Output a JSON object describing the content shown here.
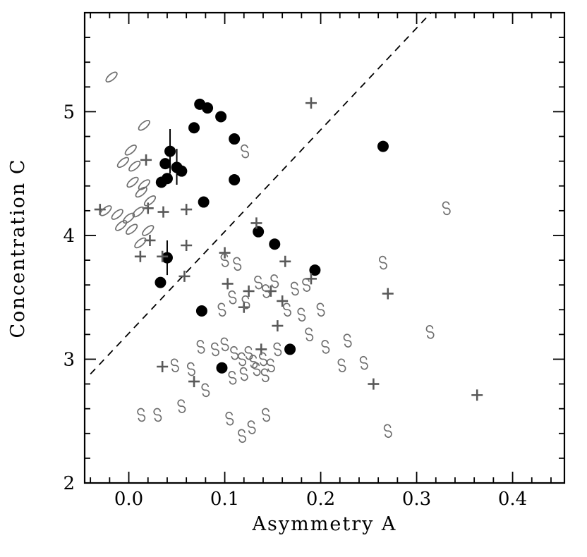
{
  "page": {
    "background": "#ffffff"
  },
  "chart_data": {
    "type": "scatter",
    "title": "",
    "xlabel": "Asymmetry A",
    "ylabel": "Concentration C",
    "xlim": [
      -0.046,
      0.454
    ],
    "ylim": [
      2.0,
      5.8
    ],
    "grid": false,
    "legend": null,
    "frame_color": "#000000",
    "xticks": {
      "values": [
        0.0,
        0.1,
        0.2,
        0.3,
        0.4
      ],
      "labels": [
        "0.0",
        "0.1",
        "0.2",
        "0.3",
        "0.4"
      ],
      "minor_step": 0.02
    },
    "yticks": {
      "values": [
        2,
        3,
        4,
        5
      ],
      "labels": [
        "2",
        "3",
        "4",
        "5"
      ],
      "minor_step": 0.2
    },
    "divider_line": {
      "style": "dashed",
      "color": "#000000",
      "points": [
        [
          -0.04,
          2.88
        ],
        [
          0.315,
          5.8
        ]
      ]
    },
    "series": [
      {
        "name": "filled-circles",
        "marker": "filled-circle",
        "color": "#000000",
        "points": [
          [
            0.074,
            5.06
          ],
          [
            0.082,
            5.03
          ],
          [
            0.096,
            4.96
          ],
          [
            0.068,
            4.87
          ],
          [
            0.11,
            4.78
          ],
          [
            0.265,
            4.72
          ],
          [
            0.043,
            4.68
          ],
          [
            0.038,
            4.58
          ],
          [
            0.05,
            4.55
          ],
          [
            0.055,
            4.52
          ],
          [
            0.04,
            4.46
          ],
          [
            0.034,
            4.43
          ],
          [
            0.11,
            4.45
          ],
          [
            0.078,
            4.27
          ],
          [
            0.135,
            4.03
          ],
          [
            0.152,
            3.93
          ],
          [
            0.04,
            3.82
          ],
          [
            0.194,
            3.72
          ],
          [
            0.033,
            3.62
          ],
          [
            0.076,
            3.39
          ],
          [
            0.168,
            3.08
          ],
          [
            0.097,
            2.93
          ]
        ]
      },
      {
        "name": "plus-markers",
        "marker": "plus",
        "color": "#595959",
        "points": [
          [
            0.19,
            5.07
          ],
          [
            0.018,
            4.61
          ],
          [
            -0.03,
            4.21
          ],
          [
            0.02,
            4.22
          ],
          [
            0.036,
            4.19
          ],
          [
            0.06,
            4.21
          ],
          [
            0.022,
            3.96
          ],
          [
            0.012,
            3.83
          ],
          [
            0.035,
            3.83
          ],
          [
            0.133,
            4.1
          ],
          [
            0.06,
            3.92
          ],
          [
            0.1,
            3.86
          ],
          [
            0.163,
            3.79
          ],
          [
            0.058,
            3.67
          ],
          [
            0.19,
            3.65
          ],
          [
            0.103,
            3.61
          ],
          [
            0.125,
            3.55
          ],
          [
            0.148,
            3.55
          ],
          [
            0.27,
            3.53
          ],
          [
            0.16,
            3.47
          ],
          [
            0.12,
            3.42
          ],
          [
            0.155,
            3.27
          ],
          [
            0.138,
            3.08
          ],
          [
            0.035,
            2.94
          ],
          [
            0.068,
            2.82
          ],
          [
            0.255,
            2.8
          ],
          [
            0.363,
            2.71
          ]
        ]
      },
      {
        "name": "spiral-symbols",
        "marker": "spiral",
        "color": "#6e6e6e",
        "points": [
          [
            0.121,
            4.68
          ],
          [
            0.331,
            4.22
          ],
          [
            0.265,
            3.78
          ],
          [
            0.1,
            3.8
          ],
          [
            0.113,
            3.77
          ],
          [
            0.135,
            3.62
          ],
          [
            0.152,
            3.63
          ],
          [
            0.173,
            3.57
          ],
          [
            0.185,
            3.6
          ],
          [
            0.143,
            3.55
          ],
          [
            0.108,
            3.5
          ],
          [
            0.122,
            3.46
          ],
          [
            0.165,
            3.4
          ],
          [
            0.18,
            3.36
          ],
          [
            0.2,
            3.4
          ],
          [
            0.097,
            3.4
          ],
          [
            0.188,
            3.2
          ],
          [
            0.314,
            3.22
          ],
          [
            0.075,
            3.1
          ],
          [
            0.09,
            3.08
          ],
          [
            0.1,
            3.12
          ],
          [
            0.11,
            3.05
          ],
          [
            0.118,
            3.0
          ],
          [
            0.125,
            3.05
          ],
          [
            0.13,
            2.98
          ],
          [
            0.14,
            3.0
          ],
          [
            0.148,
            2.95
          ],
          [
            0.155,
            3.08
          ],
          [
            0.133,
            2.92
          ],
          [
            0.12,
            2.88
          ],
          [
            0.142,
            2.87
          ],
          [
            0.205,
            3.1
          ],
          [
            0.228,
            3.15
          ],
          [
            0.222,
            2.95
          ],
          [
            0.245,
            2.97
          ],
          [
            0.065,
            2.92
          ],
          [
            0.048,
            2.95
          ],
          [
            0.108,
            2.85
          ],
          [
            0.08,
            2.75
          ],
          [
            0.03,
            2.55
          ],
          [
            0.055,
            2.62
          ],
          [
            0.013,
            2.55
          ],
          [
            0.105,
            2.52
          ],
          [
            0.128,
            2.45
          ],
          [
            0.143,
            2.55
          ],
          [
            0.118,
            2.38
          ],
          [
            0.27,
            2.42
          ]
        ]
      },
      {
        "name": "ellipse-symbols",
        "marker": "ellipse",
        "color": "#6e6e6e",
        "points": [
          [
            -0.018,
            5.28
          ],
          [
            0.016,
            4.89
          ],
          [
            0.002,
            4.69
          ],
          [
            -0.006,
            4.59
          ],
          [
            0.006,
            4.56
          ],
          [
            0.004,
            4.43
          ],
          [
            0.016,
            4.41
          ],
          [
            0.013,
            4.35
          ],
          [
            0.022,
            4.28
          ],
          [
            -0.012,
            4.17
          ],
          [
            0.0,
            4.14
          ],
          [
            0.01,
            4.19
          ],
          [
            -0.008,
            4.08
          ],
          [
            0.003,
            4.05
          ],
          [
            0.02,
            4.04
          ],
          [
            0.012,
            3.94
          ],
          [
            -0.024,
            4.2
          ]
        ]
      }
    ],
    "error_bars": [
      {
        "x": 0.043,
        "y": 4.68,
        "y_lo": 4.5,
        "y_hi": 4.86
      },
      {
        "x": 0.05,
        "y": 4.55,
        "y_lo": 4.41,
        "y_hi": 4.7
      },
      {
        "x": 0.04,
        "y": 3.82,
        "y_lo": 3.68,
        "y_hi": 3.96
      }
    ]
  }
}
